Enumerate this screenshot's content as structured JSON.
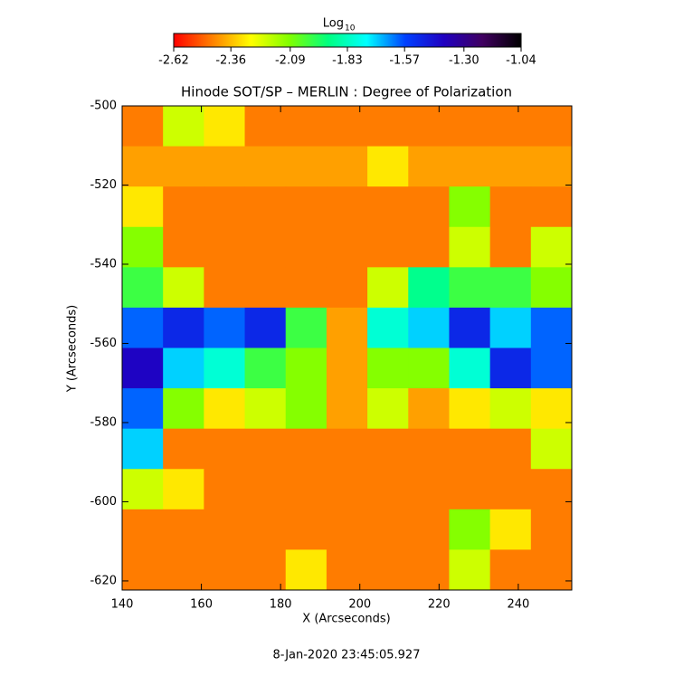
{
  "chart_data": {
    "type": "heatmap",
    "title": "Hinode SOT/SP – MERLIN : Degree of Polarization",
    "xlabel": "X (Arcseconds)",
    "ylabel": "Y (Arcseconds)",
    "footer": "8-Jan-2020 23:45:05.927",
    "xlim": [
      140,
      253.5
    ],
    "ylim": [
      -622.3,
      -500
    ],
    "xticks": [
      140,
      160,
      180,
      200,
      220,
      240
    ],
    "yticks": [
      -500,
      -520,
      -540,
      -560,
      -580,
      -600,
      -620
    ],
    "colorbar": {
      "label": "Log",
      "label_sub": "10",
      "lim": [
        -2.62,
        -1.04
      ],
      "ticks": [
        -2.62,
        -2.36,
        -2.09,
        -1.83,
        -1.57,
        {
          "value": -1.3,
          "label": "-1.30"
        },
        -1.04
      ],
      "colors": [
        "#ff0000",
        "#ff8000",
        "#ffff00",
        "#80ff00",
        "#00ff80",
        "#00ffff",
        "#0040ff",
        "#2000c0",
        "#400060",
        "#000000"
      ]
    },
    "z": [
      [
        -2.45,
        -2.2,
        -2.3,
        -2.45,
        -2.45,
        -2.45,
        -2.45,
        -2.45,
        -2.45,
        -2.45,
        -2.45
      ],
      [
        -2.4,
        -2.4,
        -2.4,
        -2.4,
        -2.4,
        -2.4,
        -2.3,
        -2.4,
        -2.4,
        -2.4,
        -2.4
      ],
      [
        -2.3,
        -2.45,
        -2.45,
        -2.45,
        -2.45,
        -2.45,
        -2.45,
        -2.45,
        -2.1,
        -2.45,
        -2.45
      ],
      [
        -2.1,
        -2.45,
        -2.45,
        -2.45,
        -2.45,
        -2.45,
        -2.45,
        -2.45,
        -2.2,
        -2.45,
        -2.2
      ],
      [
        -2.0,
        -2.2,
        -2.45,
        -2.45,
        -2.45,
        -2.45,
        -2.2,
        -1.9,
        -2.0,
        -2.0,
        -2.1
      ],
      [
        -1.6,
        -1.5,
        -1.6,
        -1.5,
        -2.0,
        -2.4,
        -1.8,
        -1.7,
        -1.5,
        -1.7,
        -1.6
      ],
      [
        -1.4,
        -1.7,
        -1.8,
        -2.0,
        -2.1,
        -2.4,
        -2.1,
        -2.1,
        -1.8,
        -1.5,
        -1.6
      ],
      [
        -1.6,
        -2.1,
        -2.3,
        -2.2,
        -2.1,
        -2.4,
        -2.2,
        -2.4,
        -2.3,
        -2.2,
        -2.3
      ],
      [
        -1.7,
        -2.45,
        -2.45,
        -2.45,
        -2.45,
        -2.45,
        -2.45,
        -2.45,
        -2.45,
        -2.45,
        -2.2
      ],
      [
        -2.2,
        -2.3,
        -2.45,
        -2.45,
        -2.45,
        -2.45,
        -2.45,
        -2.45,
        -2.45,
        -2.45,
        -2.45
      ],
      [
        -2.45,
        -2.45,
        -2.45,
        -2.45,
        -2.45,
        -2.45,
        -2.45,
        -2.45,
        -2.1,
        -2.3,
        -2.45
      ],
      [
        -2.45,
        -2.45,
        -2.45,
        -2.45,
        -2.3,
        -2.45,
        -2.45,
        -2.45,
        -2.2,
        -2.45,
        -2.45
      ]
    ]
  }
}
